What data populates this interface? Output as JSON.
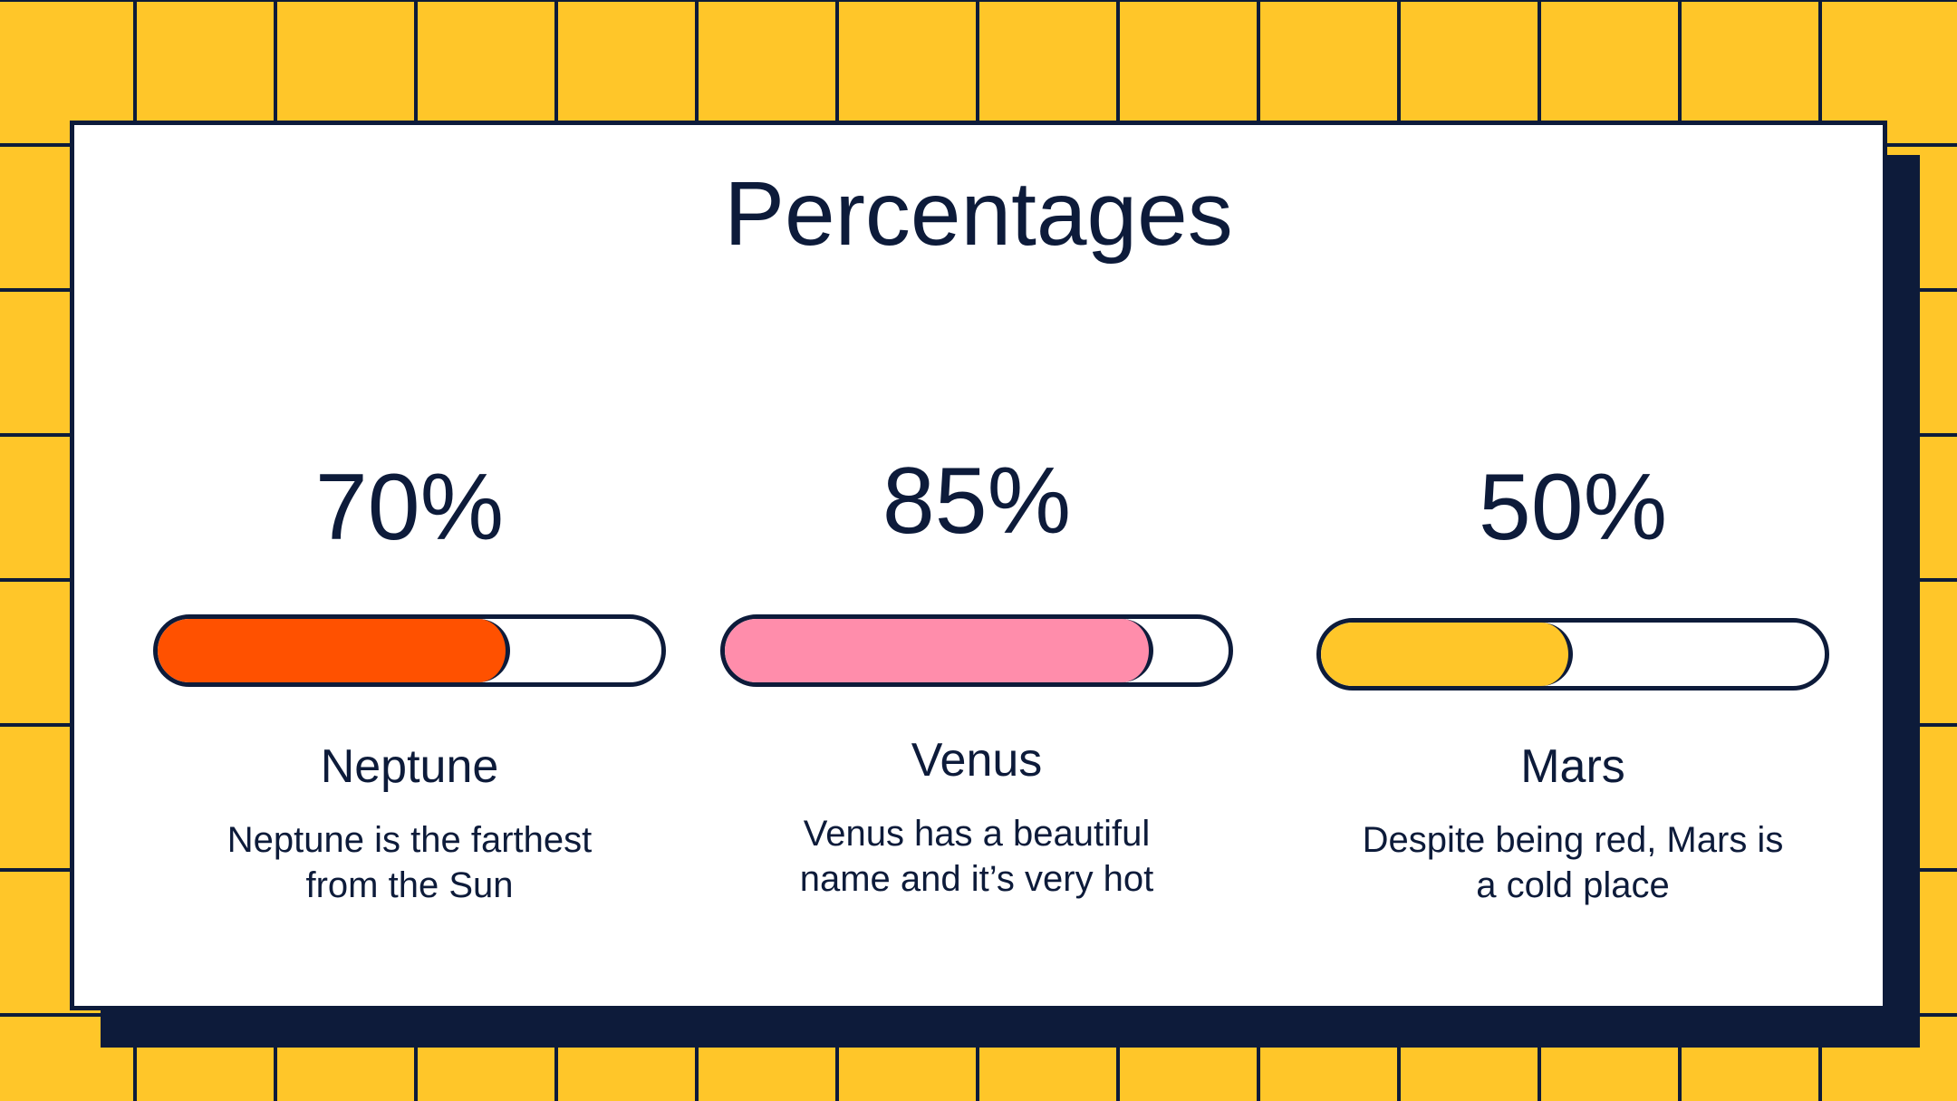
{
  "title": "Percentages",
  "colors": {
    "background": "#FFC629",
    "ink": "#0D1B3A",
    "card": "#FFFFFF"
  },
  "items": [
    {
      "percent_label": "70%",
      "value": 0.7,
      "name": "Neptune",
      "description": "Neptune is the farthest from the Sun",
      "color": "#FF5100"
    },
    {
      "percent_label": "85%",
      "value": 0.85,
      "name": "Venus",
      "description": "Venus has a beautiful name and it’s very hot",
      "color": "#FF8DAB"
    },
    {
      "percent_label": "50%",
      "value": 0.5,
      "name": "Mars",
      "description": "Despite being red, Mars is a cold place",
      "color": "#FFC629"
    }
  ]
}
